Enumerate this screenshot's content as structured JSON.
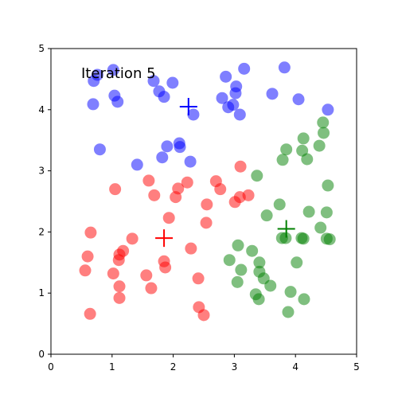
{
  "chart_data": {
    "type": "scatter",
    "annotation": "Iteration 5",
    "xlim": [
      0,
      5
    ],
    "ylim": [
      0,
      5
    ],
    "xticks": [
      0,
      1,
      2,
      3,
      4,
      5
    ],
    "yticks": [
      0,
      1,
      2,
      3,
      4,
      5
    ],
    "series": [
      {
        "color": "#0000ff",
        "x": [
          1.02,
          0.76,
          0.7,
          1.04,
          1.09,
          0.69,
          1.68,
          1.77,
          1.99,
          1.85,
          3.16,
          2.86,
          3.03,
          3.02,
          2.8,
          2.98,
          2.9,
          3.09,
          3.82,
          3.62,
          4.05,
          4.53,
          2.33,
          0.8,
          2.1,
          2.11,
          1.9,
          1.82,
          2.28,
          1.41
        ],
        "values": [
          4.65,
          4.57,
          4.47,
          4.23,
          4.13,
          4.09,
          4.47,
          4.3,
          4.44,
          4.21,
          4.67,
          4.54,
          4.38,
          4.27,
          4.19,
          4.08,
          4.04,
          3.92,
          4.69,
          4.26,
          4.17,
          4.0,
          3.92,
          3.35,
          3.45,
          3.39,
          3.4,
          3.22,
          3.15,
          3.1
        ],
        "centroid": [
          2.25,
          4.05
        ]
      },
      {
        "color": "#ff0000",
        "x": [
          3.1,
          2.7,
          2.77,
          2.23,
          2.08,
          1.6,
          1.05,
          1.69,
          2.04,
          3.23,
          3.09,
          3.01,
          2.55,
          1.93,
          2.54,
          0.65,
          1.33,
          1.85,
          1.87,
          2.29,
          1.18,
          1.12,
          1.11,
          0.6,
          0.56,
          1.02,
          1.56,
          2.41,
          1.12,
          1.64,
          1.12,
          2.42,
          2.5,
          0.64
        ],
        "values": [
          3.07,
          2.83,
          2.7,
          2.81,
          2.71,
          2.84,
          2.7,
          2.6,
          2.57,
          2.6,
          2.57,
          2.49,
          2.45,
          2.23,
          2.15,
          1.99,
          1.89,
          1.52,
          1.42,
          1.73,
          1.69,
          1.63,
          1.54,
          1.6,
          1.37,
          1.32,
          1.29,
          1.24,
          1.11,
          1.08,
          0.92,
          0.77,
          0.64,
          0.66
        ],
        "centroid": [
          1.85,
          1.9
        ]
      },
      {
        "color": "#008000",
        "x": [
          4.45,
          4.46,
          4.13,
          3.85,
          4.11,
          4.39,
          3.79,
          4.19,
          3.37,
          4.53,
          3.74,
          4.22,
          4.51,
          3.53,
          4.41,
          3.78,
          3.84,
          4.1,
          4.13,
          4.51,
          4.56,
          3.06,
          3.29,
          3.41,
          2.92,
          3.11,
          3.41,
          4.02,
          3.48,
          3.05,
          3.59,
          3.92,
          3.35,
          3.4,
          4.14,
          3.88
        ],
        "values": [
          3.79,
          3.62,
          3.53,
          3.35,
          3.33,
          3.41,
          3.18,
          3.19,
          2.92,
          2.76,
          2.45,
          2.33,
          2.32,
          2.27,
          2.07,
          1.9,
          1.9,
          1.9,
          1.89,
          1.89,
          1.88,
          1.78,
          1.69,
          1.5,
          1.54,
          1.38,
          1.35,
          1.5,
          1.24,
          1.18,
          1.12,
          1.02,
          0.98,
          0.9,
          0.9,
          0.69
        ],
        "centroid": [
          3.85,
          2.05
        ]
      }
    ]
  }
}
